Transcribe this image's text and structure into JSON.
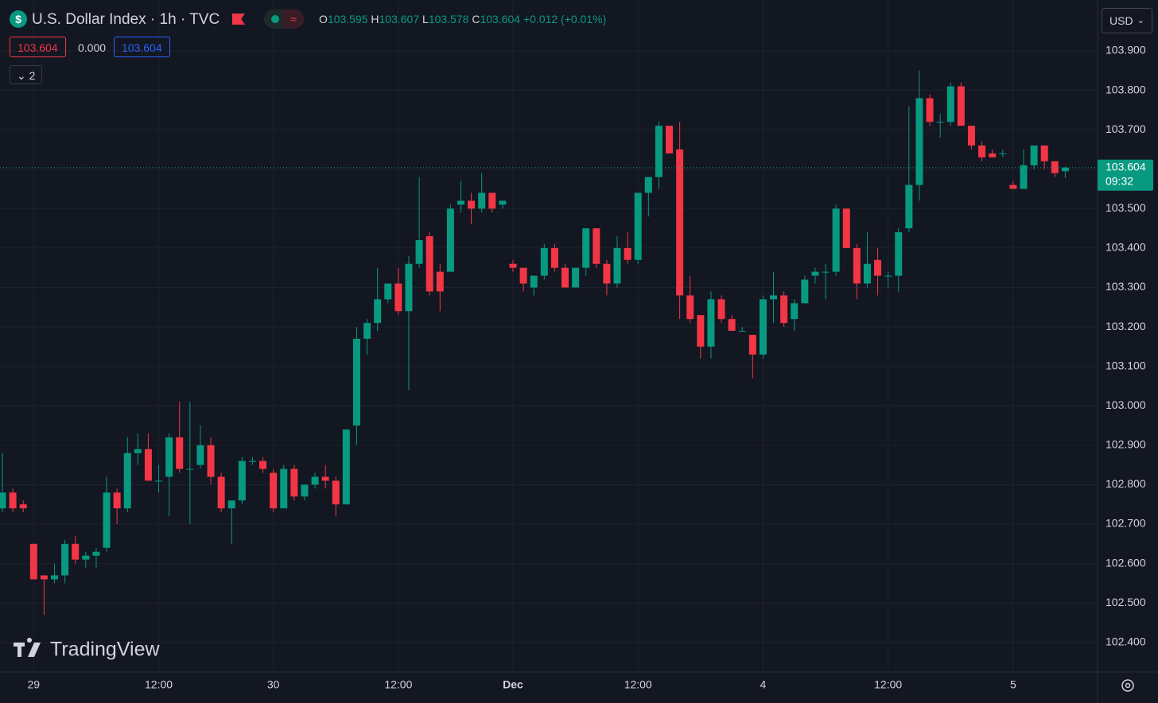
{
  "header": {
    "title": "U.S. Dollar Index · 1h · TVC",
    "change": "+0.012 (+0.01%)",
    "o": "O",
    "h": "H",
    "l": "L",
    "c": "C",
    "currency": "USD",
    "indicators": "2",
    "brand": "TradingView"
  },
  "quote": {
    "bid": "103.604",
    "spread": "0.000",
    "ask": "103.604"
  },
  "chart_data": {
    "type": "candlestick",
    "up_color": "#089981",
    "down_color": "#f23645",
    "grid": true,
    "last_price": 103.604,
    "last_price_label": "103.604",
    "countdown": "09:32",
    "open": [
      102.74,
      102.78,
      102.75,
      102.65,
      102.57,
      102.56,
      102.57,
      102.65,
      102.61,
      102.62,
      102.64,
      102.78,
      102.74,
      102.88,
      102.89,
      102.81,
      102.82,
      102.92,
      102.84,
      102.85,
      102.9,
      102.82,
      102.74,
      102.76,
      102.86,
      102.86,
      102.83,
      102.74,
      102.84,
      102.77,
      102.8,
      102.82,
      102.81,
      102.75,
      102.95,
      103.17,
      103.21,
      103.27,
      103.31,
      103.24,
      103.36,
      103.43,
      103.34,
      103.34,
      103.51,
      103.52,
      103.5,
      103.54,
      103.51,
      103.36,
      103.35,
      103.3,
      103.33,
      103.4,
      103.35,
      103.3,
      103.35,
      103.45,
      103.36,
      103.31,
      103.4,
      103.37,
      103.54,
      103.58,
      103.71,
      103.65,
      103.28,
      103.23,
      103.15,
      103.27,
      103.22,
      103.19,
      103.18,
      103.13,
      103.27,
      103.28,
      103.22,
      103.26,
      103.33,
      103.34,
      103.34,
      103.5,
      103.4,
      103.31,
      103.37,
      103.33,
      103.33,
      103.45,
      103.56,
      103.78,
      103.72,
      103.72,
      103.81,
      103.71,
      103.66,
      103.64,
      103.64,
      103.56,
      103.55,
      103.61,
      103.66,
      103.62,
      103.595
    ],
    "high": [
      102.88,
      102.79,
      102.76,
      102.65,
      102.57,
      102.6,
      102.66,
      102.67,
      102.63,
      102.64,
      102.82,
      102.79,
      102.92,
      102.93,
      102.93,
      102.85,
      102.93,
      103.01,
      103.01,
      102.95,
      102.92,
      102.83,
      102.76,
      102.87,
      102.87,
      102.87,
      102.84,
      102.85,
      102.85,
      102.8,
      102.83,
      102.85,
      102.82,
      102.94,
      103.2,
      103.22,
      103.35,
      103.31,
      103.35,
      103.38,
      103.58,
      103.44,
      103.36,
      103.51,
      103.57,
      103.54,
      103.59,
      103.54,
      103.52,
      103.37,
      103.35,
      103.33,
      103.41,
      103.41,
      103.36,
      103.35,
      103.45,
      103.45,
      103.37,
      103.43,
      103.44,
      103.54,
      103.58,
      103.72,
      103.71,
      103.72,
      103.33,
      103.23,
      103.29,
      103.28,
      103.23,
      103.2,
      103.18,
      103.28,
      103.34,
      103.29,
      103.27,
      103.33,
      103.35,
      103.36,
      103.51,
      103.5,
      103.41,
      103.44,
      103.4,
      103.34,
      103.45,
      103.76,
      103.85,
      103.79,
      103.74,
      103.82,
      103.82,
      103.71,
      103.67,
      103.65,
      103.65,
      103.57,
      103.65,
      103.66,
      103.66,
      103.62,
      103.607
    ],
    "low": [
      102.73,
      102.73,
      102.73,
      102.56,
      102.47,
      102.55,
      102.55,
      102.6,
      102.59,
      102.59,
      102.63,
      102.7,
      102.73,
      102.85,
      102.81,
      102.78,
      102.72,
      102.83,
      102.7,
      102.84,
      102.8,
      102.73,
      102.65,
      102.75,
      102.85,
      102.83,
      102.73,
      102.74,
      102.76,
      102.76,
      102.79,
      102.79,
      102.72,
      102.75,
      102.9,
      103.13,
      103.19,
      103.26,
      103.23,
      103.04,
      103.35,
      103.28,
      103.24,
      103.34,
      103.49,
      103.46,
      103.49,
      103.49,
      103.5,
      103.34,
      103.29,
      103.28,
      103.32,
      103.34,
      103.3,
      103.3,
      103.33,
      103.35,
      103.28,
      103.3,
      103.36,
      103.36,
      103.48,
      103.55,
      103.64,
      103.22,
      103.21,
      103.12,
      103.12,
      103.21,
      103.19,
      103.19,
      103.07,
      103.12,
      103.21,
      103.2,
      103.19,
      103.26,
      103.31,
      103.27,
      103.33,
      103.4,
      103.27,
      103.3,
      103.28,
      103.3,
      103.29,
      103.44,
      103.52,
      103.71,
      103.68,
      103.71,
      103.71,
      103.65,
      103.62,
      103.63,
      103.63,
      103.55,
      103.55,
      103.6,
      103.6,
      103.58,
      103.578
    ],
    "close": [
      102.78,
      102.74,
      102.74,
      102.56,
      102.56,
      102.57,
      102.65,
      102.61,
      102.62,
      102.63,
      102.78,
      102.74,
      102.88,
      102.89,
      102.81,
      102.81,
      102.92,
      102.84,
      102.84,
      102.9,
      102.82,
      102.74,
      102.76,
      102.86,
      102.86,
      102.84,
      102.74,
      102.84,
      102.77,
      102.8,
      102.82,
      102.81,
      102.75,
      102.94,
      103.17,
      103.21,
      103.27,
      103.31,
      103.24,
      103.36,
      103.42,
      103.29,
      103.29,
      103.5,
      103.52,
      103.5,
      103.54,
      103.5,
      103.52,
      103.35,
      103.31,
      103.33,
      103.4,
      103.35,
      103.3,
      103.35,
      103.45,
      103.36,
      103.31,
      103.4,
      103.37,
      103.54,
      103.58,
      103.71,
      103.64,
      103.28,
      103.22,
      103.15,
      103.27,
      103.22,
      103.19,
      103.19,
      103.13,
      103.27,
      103.28,
      103.21,
      103.26,
      103.32,
      103.34,
      103.34,
      103.5,
      103.4,
      103.31,
      103.36,
      103.33,
      103.33,
      103.44,
      103.56,
      103.78,
      103.72,
      103.72,
      103.81,
      103.71,
      103.66,
      103.63,
      103.63,
      103.64,
      103.55,
      103.61,
      103.66,
      103.62,
      103.59,
      103.604
    ],
    "xlim": [
      -0.23,
      105.1
    ],
    "xticks": [
      {
        "value": 3,
        "label": "29"
      },
      {
        "value": 15,
        "label": "12:00"
      },
      {
        "value": 26,
        "label": "30"
      },
      {
        "value": 38,
        "label": "12:00"
      },
      {
        "value": 49,
        "label": "Dec"
      },
      {
        "value": 61,
        "label": "12:00"
      },
      {
        "value": 73,
        "label": "4"
      },
      {
        "value": 85,
        "label": "12:00"
      },
      {
        "value": 97,
        "label": "5"
      }
    ],
    "ylim": [
      102.325,
      104.029
    ],
    "yticks": [
      {
        "value": 102.4,
        "label": "102.400"
      },
      {
        "value": 102.5,
        "label": "102.500"
      },
      {
        "value": 102.6,
        "label": "102.600"
      },
      {
        "value": 102.7,
        "label": "102.700"
      },
      {
        "value": 102.8,
        "label": "102.800"
      },
      {
        "value": 102.9,
        "label": "102.900"
      },
      {
        "value": 103.0,
        "label": "103.000"
      },
      {
        "value": 103.1,
        "label": "103.100"
      },
      {
        "value": 103.2,
        "label": "103.200"
      },
      {
        "value": 103.3,
        "label": "103.300"
      },
      {
        "value": 103.4,
        "label": "103.400"
      },
      {
        "value": 103.5,
        "label": "103.500"
      },
      {
        "value": 103.6,
        "label": "103.600"
      },
      {
        "value": 103.7,
        "label": "103.700"
      },
      {
        "value": 103.8,
        "label": "103.800"
      },
      {
        "value": 103.9,
        "label": "103.900"
      }
    ]
  }
}
